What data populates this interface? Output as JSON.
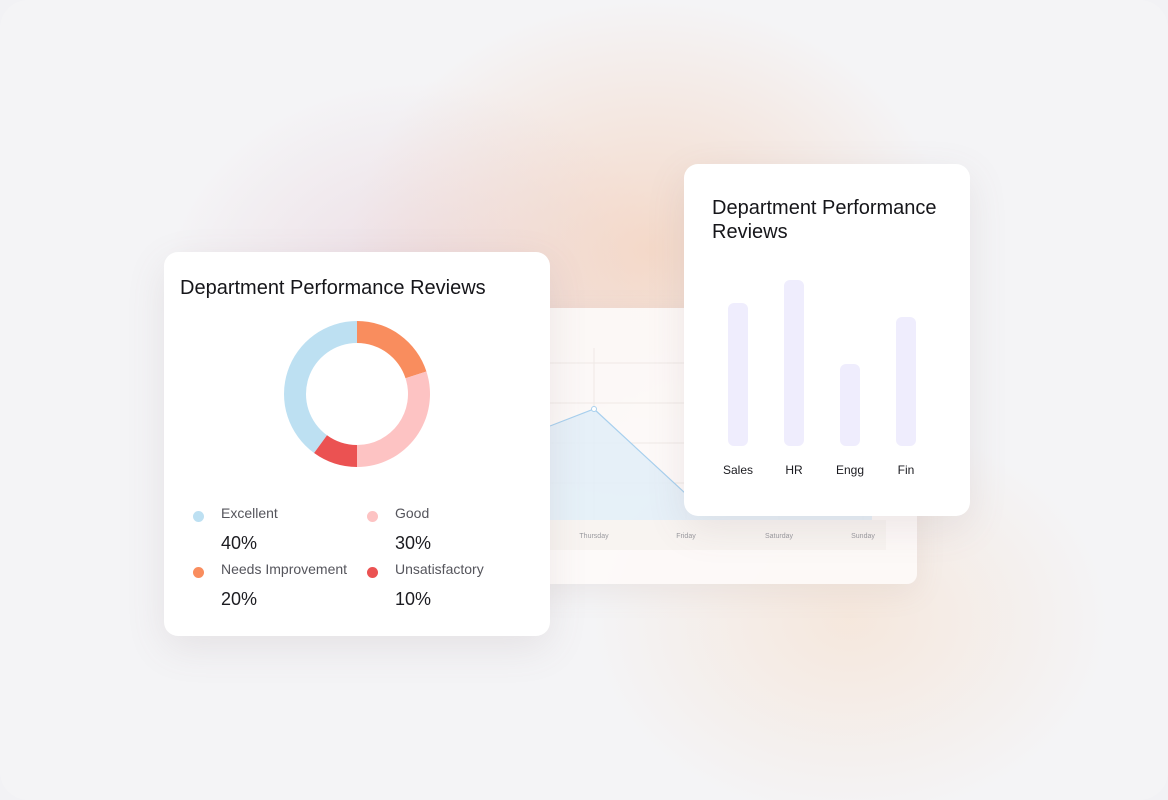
{
  "chart_data": [
    {
      "type": "pie",
      "title": "Department Performance Reviews",
      "donut": true,
      "slices": [
        {
          "label": "Excellent",
          "value": 40,
          "display": "40%",
          "color": "#bde0f2"
        },
        {
          "label": "Needs Improvement",
          "value": 20,
          "display": "20%",
          "color": "#f98d5e"
        },
        {
          "label": "Good",
          "value": 30,
          "display": "30%",
          "color": "#fdc3c3"
        },
        {
          "label": "Unsatisfactory",
          "value": 10,
          "display": "10%",
          "color": "#eb5252"
        }
      ],
      "legend_order": [
        "Excellent",
        "Good",
        "Needs Improvement",
        "Unsatisfactory"
      ]
    },
    {
      "type": "bar",
      "title": "Department Performance Reviews",
      "categories": [
        "Sales",
        "HR",
        "Engg",
        "Fin"
      ],
      "values": [
        143,
        166,
        82,
        129
      ],
      "bar_color": "#efedfd",
      "ylim": [
        0,
        166
      ]
    },
    {
      "type": "area",
      "x": [
        "Thursday",
        "Friday",
        "Saturday",
        "Sunday"
      ],
      "line_color": "#a8d0ee",
      "fill_color": "#e2eef8"
    }
  ]
}
